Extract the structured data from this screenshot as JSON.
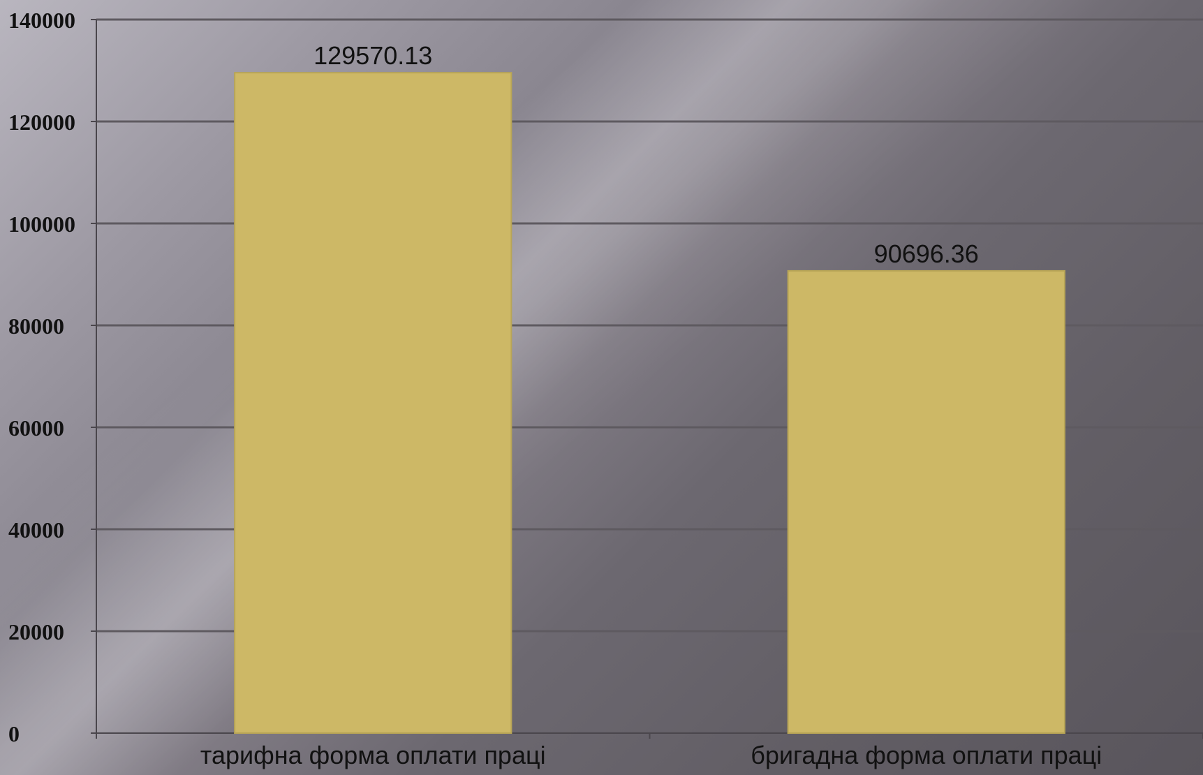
{
  "chart_data": {
    "type": "bar",
    "categories": [
      "тарифна форма оплати праці",
      "бригадна форма оплати праці"
    ],
    "values": [
      129570.13,
      90696.36
    ],
    "data_labels": [
      "129570.13",
      "90696.36"
    ],
    "y_ticks": [
      "0",
      "20000",
      "40000",
      "60000",
      "80000",
      "100000",
      "120000",
      "140000"
    ],
    "ylim": [
      0,
      140000
    ],
    "grid": true,
    "colors": {
      "bar": "#cdb866",
      "bar_border": "#b8a556",
      "grid": "#5e5a60",
      "axis": "#4a464c"
    }
  }
}
